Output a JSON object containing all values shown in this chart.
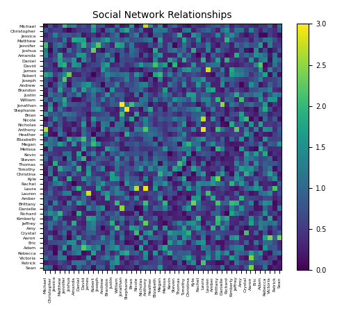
{
  "names": [
    "Michael",
    "Christopher",
    "Jessica",
    "Matthew",
    "Jennifer",
    "Joshua",
    "Amanda",
    "Daniel",
    "David",
    "James",
    "Robert",
    "Joseph",
    "Andrew",
    "Brandon",
    "Justin",
    "William",
    "Jonathan",
    "Stephanie",
    "Brian",
    "Nicole",
    "Nicholas",
    "Anthony",
    "Heather",
    "Elizabeth",
    "Megan",
    "Melissa",
    "Kevin",
    "Steven",
    "Thomas",
    "Timothy",
    "Christina",
    "Kyle",
    "Rachel",
    "Laura",
    "Lauren",
    "Amber",
    "Brittany",
    "Danielle",
    "Richard",
    "Kimberly",
    "Jeffrey",
    "Amy",
    "Crystal",
    "Aaron",
    "Eric",
    "Adam",
    "Rebecca",
    "Victoria",
    "Patrick",
    "Sean"
  ],
  "title": "Social Network Relationships",
  "colormap": "viridis",
  "vmin": 0.0,
  "vmax": 3.0,
  "seed": 7,
  "figsize": [
    5.06,
    4.51
  ],
  "dpi": 100,
  "tick_fontsize": 4.5,
  "title_fontsize": 10
}
